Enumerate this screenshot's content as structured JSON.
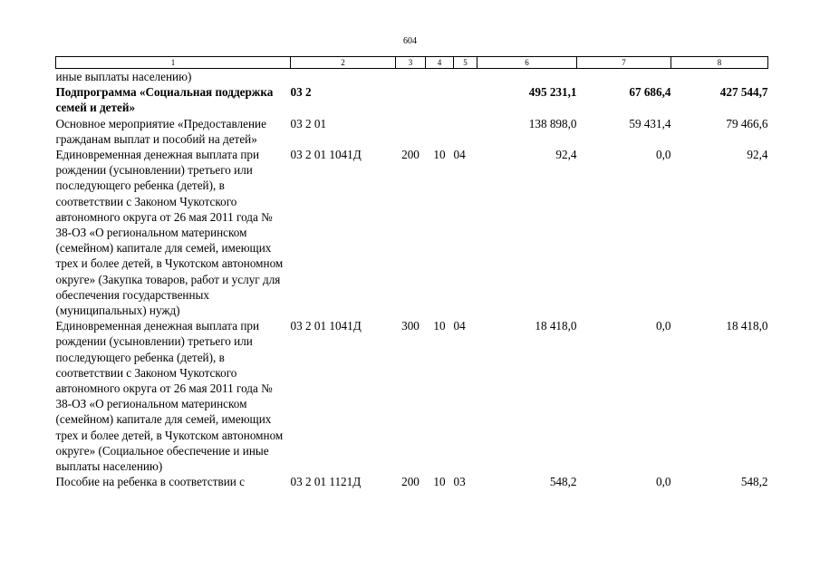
{
  "page_number": "604",
  "columns": [
    "1",
    "2",
    "3",
    "4",
    "5",
    "6",
    "7",
    "8"
  ],
  "rows": [
    {
      "bold": false,
      "name": "иные выплаты населению)",
      "code": "",
      "c3": "",
      "c4": "",
      "c5": "",
      "v6": "",
      "v7": "",
      "v8": ""
    },
    {
      "bold": true,
      "name": "Подпрограмма «Социальная поддержка семей и детей»",
      "code": "03 2",
      "c3": "",
      "c4": "",
      "c5": "",
      "v6": "495 231,1",
      "v7": "67 686,4",
      "v8": "427 544,7"
    },
    {
      "bold": false,
      "name": "Основное мероприятие «Предоставление гражданам выплат и пособий на детей»",
      "code": "03 2 01",
      "c3": "",
      "c4": "",
      "c5": "",
      "v6": "138 898,0",
      "v7": "59 431,4",
      "v8": "79 466,6"
    },
    {
      "bold": false,
      "name": "Единовременная денежная выплата при рождении (усыновлении) третьего или последующего ребенка (детей), в соответствии с Законом Чукотского автономного округа от 26 мая 2011 года № 38-ОЗ «О региональном материнском (семейном) капитале для семей, имеющих трех и более детей, в Чукотском автономном округе» (Закупка товаров, работ и услуг для обеспечения государственных (муниципальных) нужд)",
      "code": "03 2 01 1041Д",
      "c3": "200",
      "c4": "10",
      "c5": "04",
      "v6": "92,4",
      "v7": "0,0",
      "v8": "92,4"
    },
    {
      "bold": false,
      "name": "Единовременная денежная выплата при рождении (усыновлении) третьего или последующего ребенка (детей), в соответствии с Законом Чукотского автономного округа от 26 мая 2011 года № 38-ОЗ «О региональном материнском (семейном) капитале для семей, имеющих трех и более детей, в Чукотском автономном округе» (Социальное обеспечение и иные выплаты населению)",
      "code": "03 2 01 1041Д",
      "c3": "300",
      "c4": "10",
      "c5": "04",
      "v6": "18 418,0",
      "v7": "0,0",
      "v8": "18 418,0"
    },
    {
      "bold": false,
      "name": "Пособие на ребенка в соответствии с",
      "code": "03 2 01 1121Д",
      "c3": "200",
      "c4": "10",
      "c5": "03",
      "v6": "548,2",
      "v7": "0,0",
      "v8": "548,2"
    }
  ]
}
